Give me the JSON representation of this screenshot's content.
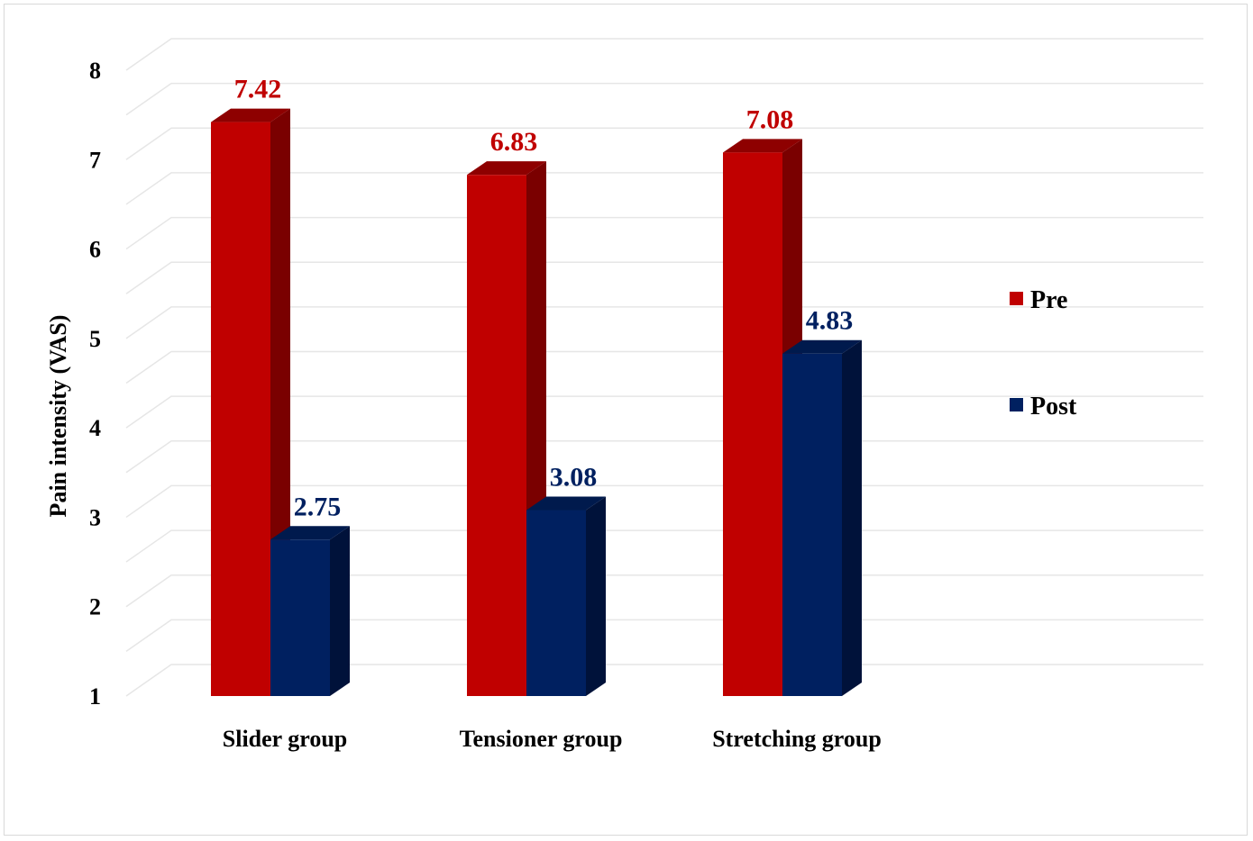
{
  "chart_data": {
    "type": "bar",
    "categories": [
      "Slider group",
      "Tensioner group",
      "Stretching group"
    ],
    "series": [
      {
        "name": "Pre",
        "values": [
          7.42,
          6.83,
          7.08
        ]
      },
      {
        "name": "Post",
        "values": [
          2.75,
          3.08,
          4.83
        ]
      }
    ],
    "data_labels": [
      [
        "7.42",
        "6.83",
        "7.08"
      ],
      [
        "2.75",
        "3.08",
        "4.83"
      ]
    ],
    "title": "",
    "xlabel": "",
    "ylabel": "Pain intensity (VAS)",
    "ylim": [
      1,
      8
    ],
    "yticks": [
      "1",
      "2",
      "3",
      "4",
      "5",
      "6",
      "7",
      "8"
    ],
    "grid": true,
    "legend": "right",
    "style": "3d-column",
    "colors": {
      "Pre": {
        "front": "#c00000",
        "side": "#7a0000",
        "top": "#8e0000",
        "label": "#c00000"
      },
      "Post": {
        "front": "#002060",
        "side": "#00123a",
        "top": "#001a4d",
        "label": "#002060"
      }
    }
  }
}
